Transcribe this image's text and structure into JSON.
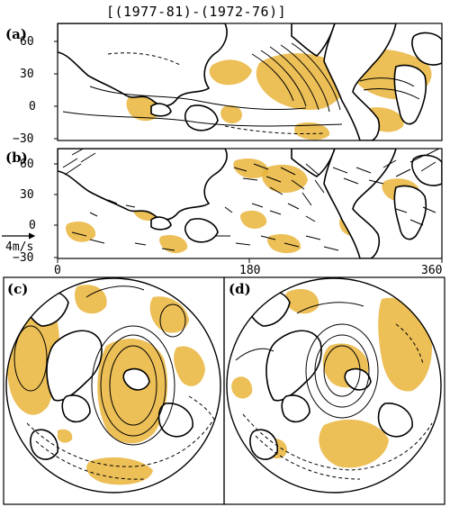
{
  "title": "[(1977-81)-(1972-76)]",
  "panels": {
    "a": {
      "label": "(a)"
    },
    "b": {
      "label": "(b)",
      "reference_vector_label": "4m/s"
    },
    "c": {
      "label": "(c)"
    },
    "d": {
      "label": "(d)"
    }
  },
  "axes": {
    "y_ticks": [
      "60",
      "30",
      "0",
      "−30"
    ],
    "x_ticks": [
      "0",
      "180",
      "360"
    ]
  },
  "colors": {
    "shading": "#e9b43a",
    "lines": "#000000",
    "background": "#ffffff"
  }
}
